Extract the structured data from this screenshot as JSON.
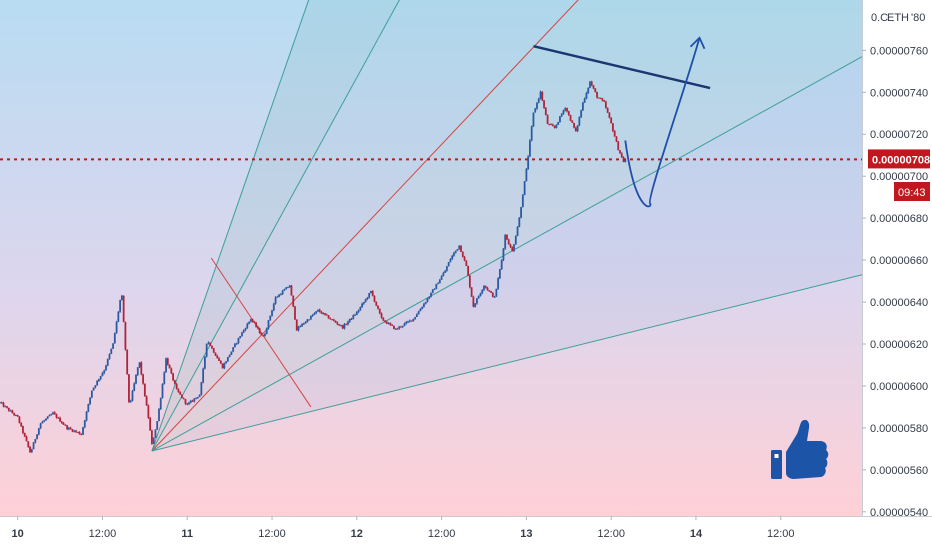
{
  "colors": {
    "up": "#2c5aa0",
    "down": "#b0243a",
    "price_line": "#c0181e",
    "price_label_bg": "#c0181e",
    "fan_line": "#3d9f98",
    "fan_red": "#d8433f",
    "trend_line": "#1b3670",
    "arrow": "#1f4fa8",
    "thumb": "#1c55a8",
    "axis_text": "#333b47",
    "bg_top": "#b8dcf2",
    "bg_bottom": "#ffd0d6"
  },
  "header": {
    "currency": "ETH",
    "scale_prefix": "0.C",
    "scale_suffix": "'80"
  },
  "price_label": {
    "price": "0.00000708",
    "countdown": "09:43"
  },
  "icons": {
    "like": "thumbs-up-icon"
  },
  "chart_data": {
    "type": "candlestick",
    "title": "",
    "xlabel": "",
    "ylabel": "",
    "symbol_currency": "ETH",
    "ylim": [
      5.38e-06,
      7.84e-06
    ],
    "y_ticks": [
      "0.00000760",
      "0.00000740",
      "0.00000720",
      "0.00000700",
      "0.00000680",
      "0.00000660",
      "0.00000640",
      "0.00000620",
      "0.00000600",
      "0.00000580",
      "0.00000560",
      "0.00000540"
    ],
    "y_tick_values": [
      7.6e-06,
      7.4e-06,
      7.2e-06,
      7e-06,
      6.8e-06,
      6.6e-06,
      6.4e-06,
      6.2e-06,
      6e-06,
      5.8e-06,
      5.6e-06,
      5.4e-06
    ],
    "x_ticks": [
      {
        "label": "10",
        "bold": true,
        "t": 0
      },
      {
        "label": "12:00",
        "bold": false,
        "t": 12
      },
      {
        "label": "11",
        "bold": true,
        "t": 24
      },
      {
        "label": "12:00",
        "bold": false,
        "t": 36
      },
      {
        "label": "12",
        "bold": true,
        "t": 48
      },
      {
        "label": "12:00",
        "bold": false,
        "t": 60
      },
      {
        "label": "13",
        "bold": true,
        "t": 72
      },
      {
        "label": "12:00",
        "bold": false,
        "t": 84
      },
      {
        "label": "14",
        "bold": true,
        "t": 96
      },
      {
        "label": "12:00",
        "bold": false,
        "t": 108
      }
    ],
    "x_range_hours": [
      -2.5,
      119.5
    ],
    "current_price": 7.08e-06,
    "path_points": [
      [
        -2.5,
        5.92e-06
      ],
      [
        0.0,
        5.85e-06
      ],
      [
        1.8,
        5.68e-06
      ],
      [
        3.2,
        5.82e-06
      ],
      [
        5.0,
        5.87e-06
      ],
      [
        7.0,
        5.8e-06
      ],
      [
        9.0,
        5.77e-06
      ],
      [
        10.5,
        5.98e-06
      ],
      [
        12.3,
        6.08e-06
      ],
      [
        13.5,
        6.2e-06
      ],
      [
        14.7,
        6.45e-06
      ],
      [
        15.8,
        5.9e-06
      ],
      [
        17.2,
        6.12e-06
      ],
      [
        18.5,
        5.85e-06
      ],
      [
        19.0,
        5.72e-06
      ],
      [
        19.8,
        5.84e-06
      ],
      [
        21.0,
        6.13e-06
      ],
      [
        22.5,
        5.98e-06
      ],
      [
        24.0,
        5.91e-06
      ],
      [
        25.8,
        5.96e-06
      ],
      [
        26.8,
        6.22e-06
      ],
      [
        29.0,
        6.09e-06
      ],
      [
        31.5,
        6.24e-06
      ],
      [
        33.0,
        6.32e-06
      ],
      [
        34.8,
        6.23e-06
      ],
      [
        36.5,
        6.42e-06
      ],
      [
        38.5,
        6.48e-06
      ],
      [
        39.5,
        6.27e-06
      ],
      [
        42.5,
        6.36e-06
      ],
      [
        46.0,
        6.28e-06
      ],
      [
        48.0,
        6.35e-06
      ],
      [
        50.0,
        6.45e-06
      ],
      [
        51.5,
        6.32e-06
      ],
      [
        53.5,
        6.27e-06
      ],
      [
        56.0,
        6.32e-06
      ],
      [
        58.5,
        6.44e-06
      ],
      [
        60.5,
        6.55e-06
      ],
      [
        61.3,
        6.61e-06
      ],
      [
        62.5,
        6.67e-06
      ],
      [
        63.5,
        6.57e-06
      ],
      [
        64.5,
        6.38e-06
      ],
      [
        66.0,
        6.48e-06
      ],
      [
        67.5,
        6.42e-06
      ],
      [
        68.5,
        6.6e-06
      ],
      [
        69.0,
        6.72e-06
      ],
      [
        70.0,
        6.64e-06
      ],
      [
        71.0,
        6.8e-06
      ],
      [
        72.0,
        7.03e-06
      ],
      [
        73.0,
        7.3e-06
      ],
      [
        74.0,
        7.4e-06
      ],
      [
        75.0,
        7.25e-06
      ],
      [
        76.0,
        7.23e-06
      ],
      [
        77.5,
        7.33e-06
      ],
      [
        79.0,
        7.21e-06
      ],
      [
        80.0,
        7.35e-06
      ],
      [
        81.0,
        7.45e-06
      ],
      [
        82.0,
        7.38e-06
      ],
      [
        83.0,
        7.35e-06
      ],
      [
        84.0,
        7.25e-06
      ],
      [
        85.0,
        7.13e-06
      ],
      [
        86.0,
        7.05e-06
      ]
    ],
    "drawings": {
      "gann_fan_origin": [
        19.0,
        5.69e-06
      ],
      "fan_lines": [
        {
          "to": [
            41.8,
            7.9e-06
          ],
          "color": "fan_line"
        },
        {
          "to": [
            55.0,
            7.9e-06
          ],
          "color": "fan_line"
        },
        {
          "to": [
            81.0,
            7.9e-06
          ],
          "color": "fan_red"
        },
        {
          "to": [
            119.5,
            7.57e-06
          ],
          "color": "fan_line"
        },
        {
          "to": [
            119.5,
            6.53e-06
          ],
          "color": "fan_line"
        }
      ],
      "red_cross_line": {
        "from": [
          27.4,
          6.61e-06
        ],
        "to": [
          41.5,
          5.9e-06
        ]
      },
      "fan_fills": [
        {
          "between": [
            0,
            1
          ],
          "color": "#3d9f98",
          "opacity": 0.1
        },
        {
          "between": [
            1,
            2
          ],
          "color": "#3d9f98",
          "opacity": 0.07
        },
        {
          "between": [
            2,
            3
          ],
          "color": "#46b08c",
          "opacity": 0.09
        },
        {
          "between": [
            3,
            4
          ],
          "color": "#4a90c8",
          "opacity": 0.07
        }
      ],
      "resistance_line": {
        "from": [
          73.0,
          7.62e-06
        ],
        "to": [
          98.0,
          7.42e-06
        ]
      },
      "projection_curve": {
        "start": [
          86.0,
          7.17e-06
        ],
        "c1": [
          87.5,
          6.8e-06
        ],
        "c2": [
          90.0,
          6.85e-06
        ],
        "mid": [
          89.5,
          6.87e-06
        ],
        "end": [
          96.5,
          7.66e-06
        ]
      }
    }
  }
}
